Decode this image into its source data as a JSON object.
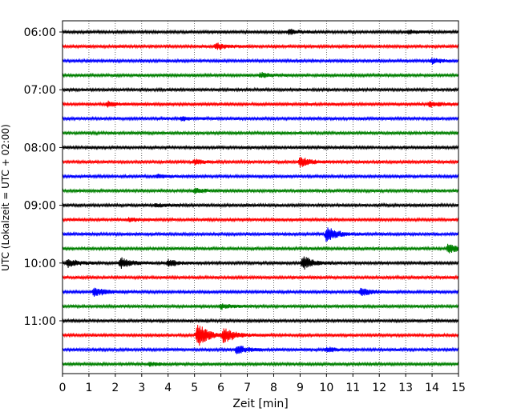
{
  "chart_data": {
    "type": "line",
    "title": "",
    "xlabel": "Zeit  [min]",
    "ylabel": "UTC (Lokalzeit = UTC + 02:00)",
    "xlim": [
      0,
      15
    ],
    "x_ticks": [
      "0",
      "1",
      "2",
      "3",
      "4",
      "5",
      "6",
      "7",
      "8",
      "9",
      "10",
      "11",
      "12",
      "13",
      "14",
      "15"
    ],
    "y_ticks": [
      "06:00",
      "07:00",
      "08:00",
      "09:00",
      "10:00",
      "11:00"
    ],
    "grid": "vertical-dotted",
    "colors": [
      "#000000",
      "#ff0000",
      "#0000ff",
      "#008000"
    ],
    "traces": [
      {
        "start": "06:00",
        "color": "#000000",
        "events": [
          {
            "t": 8.6,
            "amp": 3
          },
          {
            "t": 13.1,
            "amp": 2
          }
        ]
      },
      {
        "start": "06:15",
        "color": "#ff0000",
        "events": [
          {
            "t": 5.8,
            "amp": 4
          }
        ]
      },
      {
        "start": "06:30",
        "color": "#0000ff",
        "events": [
          {
            "t": 14.0,
            "amp": 3
          }
        ]
      },
      {
        "start": "06:45",
        "color": "#008000",
        "events": [
          {
            "t": 7.5,
            "amp": 3
          }
        ]
      },
      {
        "start": "07:00",
        "color": "#000000",
        "events": []
      },
      {
        "start": "07:15",
        "color": "#ff0000",
        "events": [
          {
            "t": 1.7,
            "amp": 3
          },
          {
            "t": 13.9,
            "amp": 3
          }
        ]
      },
      {
        "start": "07:30",
        "color": "#0000ff",
        "events": [
          {
            "t": 4.5,
            "amp": 2
          }
        ]
      },
      {
        "start": "07:45",
        "color": "#008000",
        "events": []
      },
      {
        "start": "08:00",
        "color": "#000000",
        "events": []
      },
      {
        "start": "08:15",
        "color": "#ff0000",
        "events": [
          {
            "t": 9.0,
            "amp": 6
          },
          {
            "t": 5.0,
            "amp": 3
          }
        ]
      },
      {
        "start": "08:30",
        "color": "#0000ff",
        "events": [
          {
            "t": 3.6,
            "amp": 2
          }
        ]
      },
      {
        "start": "08:45",
        "color": "#008000",
        "events": [
          {
            "t": 5.0,
            "amp": 3
          }
        ]
      },
      {
        "start": "09:00",
        "color": "#000000",
        "events": [
          {
            "t": 3.5,
            "amp": 2
          }
        ]
      },
      {
        "start": "09:15",
        "color": "#ff0000",
        "events": [
          {
            "t": 2.5,
            "amp": 2
          }
        ]
      },
      {
        "start": "09:30",
        "color": "#0000ff",
        "events": [
          {
            "t": 10.0,
            "amp": 10
          }
        ]
      },
      {
        "start": "09:45",
        "color": "#008000",
        "events": [
          {
            "t": 14.6,
            "amp": 6
          }
        ]
      },
      {
        "start": "10:00",
        "color": "#000000",
        "events": [
          {
            "t": 0.2,
            "amp": 5
          },
          {
            "t": 2.2,
            "amp": 7
          },
          {
            "t": 4.0,
            "amp": 4
          },
          {
            "t": 9.1,
            "amp": 9
          }
        ]
      },
      {
        "start": "10:15",
        "color": "#ff0000",
        "events": []
      },
      {
        "start": "10:30",
        "color": "#0000ff",
        "events": [
          {
            "t": 1.2,
            "amp": 6
          },
          {
            "t": 11.3,
            "amp": 6
          }
        ]
      },
      {
        "start": "10:45",
        "color": "#008000",
        "events": [
          {
            "t": 6.0,
            "amp": 3
          }
        ]
      },
      {
        "start": "11:00",
        "color": "#000000",
        "events": []
      },
      {
        "start": "11:15",
        "color": "#ff0000",
        "events": [
          {
            "t": 5.1,
            "amp": 16
          },
          {
            "t": 6.1,
            "amp": 10
          }
        ]
      },
      {
        "start": "11:30",
        "color": "#0000ff",
        "events": [
          {
            "t": 6.6,
            "amp": 6
          },
          {
            "t": 10.0,
            "amp": 3
          }
        ]
      },
      {
        "start": "11:45",
        "color": "#008000",
        "events": [
          {
            "t": 3.3,
            "amp": 2
          }
        ]
      }
    ]
  }
}
